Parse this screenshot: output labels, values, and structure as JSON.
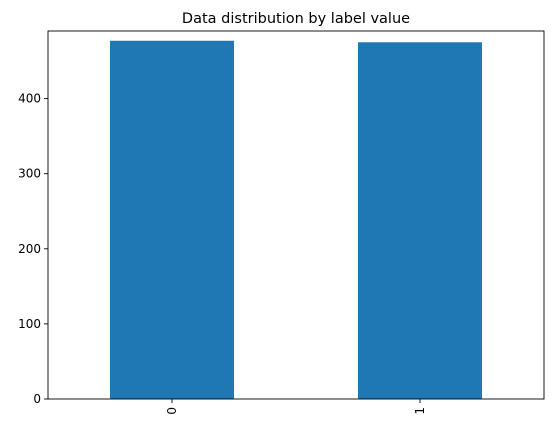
{
  "chart_data": {
    "type": "bar",
    "title": "Data distribution by label value",
    "xlabel": "",
    "ylabel": "",
    "categories": [
      "0",
      "1"
    ],
    "values": [
      477,
      475
    ],
    "ylim": [
      0,
      490
    ],
    "yticks": [
      0,
      100,
      200,
      300,
      400
    ],
    "grid": false,
    "legend": "none",
    "bar_color": "#1f77b4"
  }
}
